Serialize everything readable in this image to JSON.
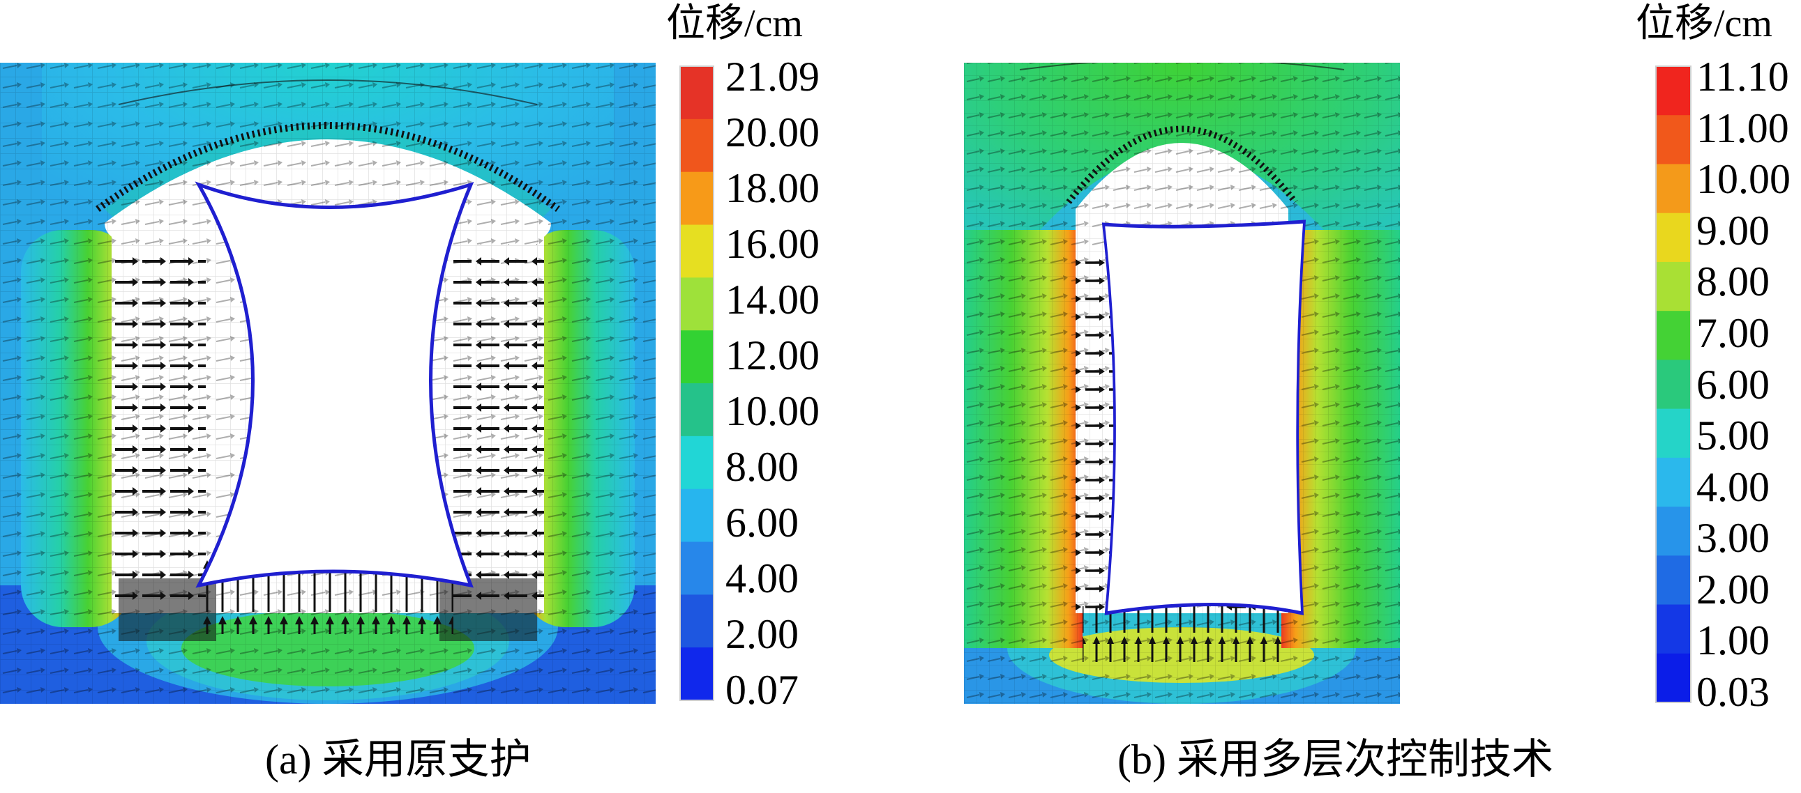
{
  "panels": [
    {
      "id": "a",
      "caption": "(a)  采用原支护",
      "legend_title": "位移/cm",
      "legend_ticks": [
        "21.09",
        "20.00",
        "18.00",
        "16.00",
        "14.00",
        "12.00",
        "10.00",
        "8.00",
        "6.00",
        "4.00",
        "2.00",
        "0.07"
      ],
      "legend_colors": [
        "#e53327",
        "#f0561c",
        "#f79a18",
        "#e6df21",
        "#9ee13a",
        "#33d233",
        "#25c28a",
        "#21d6d6",
        "#27b5ee",
        "#2787ea",
        "#1e57e0",
        "#1028ec"
      ]
    },
    {
      "id": "b",
      "caption": "(b)  采用多层次控制技术",
      "legend_title": "位移/cm",
      "legend_ticks": [
        "11.10",
        "11.00",
        "10.00",
        "9.00",
        "8.00",
        "7.00",
        "6.00",
        "5.00",
        "4.00",
        "3.00",
        "2.00",
        "1.00",
        "0.03"
      ],
      "legend_colors": [
        "#f0251e",
        "#f1581b",
        "#f49a1a",
        "#e9d71e",
        "#a9e034",
        "#44d235",
        "#2ac97c",
        "#25d4c8",
        "#2bb8ec",
        "#2794ea",
        "#1f6be4",
        "#1438e6",
        "#0b1de8"
      ]
    }
  ]
}
